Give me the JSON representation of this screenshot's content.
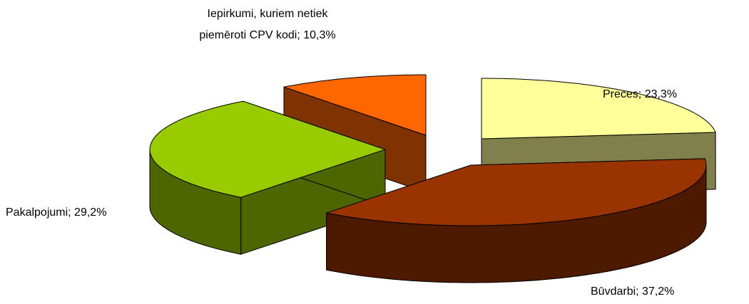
{
  "chart_data": {
    "type": "pie",
    "values": [
      23.3,
      37.2,
      29.2,
      10.3
    ],
    "value_labels": [
      "Preces; 23,3%",
      "Būvdarbi; 37,2%",
      "Pakalpojumi; 29,2%",
      "Iepirkumi, kuriem netiek piemēroti CPV kodi; 10,3%"
    ],
    "colors": [
      "#ffff99",
      "#993300",
      "#99cc00",
      "#ff6600"
    ]
  }
}
